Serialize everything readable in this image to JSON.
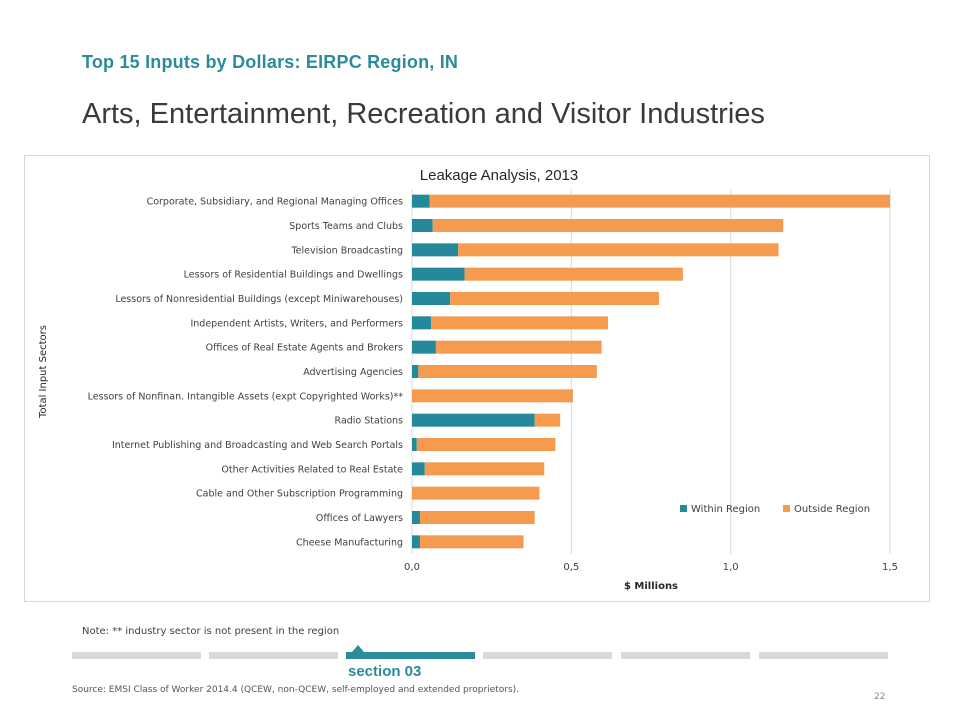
{
  "header": {
    "kicker": "Top 15 Inputs by Dollars: EIRPC Region, IN",
    "title": "Arts, Entertainment, Recreation and Visitor Industries"
  },
  "chart_data": {
    "type": "bar",
    "orientation": "horizontal",
    "stacked": true,
    "title": "Leakage Analysis, 2013",
    "xlabel": "$ Millions",
    "ylabel": "Total Input Sectors",
    "xlim": [
      0,
      1.5
    ],
    "xticks": [
      "0,0",
      "0,5",
      "1,0",
      "1,5"
    ],
    "xtick_values": [
      0,
      0.5,
      1.0,
      1.5
    ],
    "grid": "vertical",
    "legend_position": "bottom-right",
    "categories": [
      "Corporate, Subsidiary, and Regional Managing Offices",
      "Sports Teams and Clubs",
      "Television Broadcasting",
      "Lessors of Residential Buildings and Dwellings",
      "Lessors of Nonresidential Buildings (except Miniwarehouses)",
      "Independent Artists, Writers, and Performers",
      "Offices of Real Estate Agents and Brokers",
      "Advertising Agencies",
      "Lessors of Nonfinan. Intangible Assets (expt Copyrighted Works)**",
      "Radio Stations",
      "Internet Publishing and Broadcasting and Web Search Portals",
      "Other Activities Related to Real Estate",
      "Cable and Other Subscription Programming",
      "Offices of Lawyers",
      "Cheese Manufacturing"
    ],
    "series": [
      {
        "name": "Within Region",
        "color": "#23899b",
        "values": [
          0.055,
          0.065,
          0.145,
          0.165,
          0.12,
          0.06,
          0.075,
          0.02,
          0.0,
          0.385,
          0.015,
          0.04,
          0.0,
          0.025,
          0.025
        ]
      },
      {
        "name": "Outside Region",
        "color": "#f59a4f",
        "values": [
          1.445,
          1.1,
          1.005,
          0.685,
          0.655,
          0.555,
          0.52,
          0.56,
          0.505,
          0.08,
          0.435,
          0.375,
          0.4,
          0.36,
          0.325
        ]
      }
    ]
  },
  "footer": {
    "note": "Note: ** industry sector is not present in the region",
    "section_label": "section 03",
    "source": "Source: EMSI Class of Worker 2014.4 (QCEW, non-QCEW, self-employed and extended proprietors).",
    "page_number": "22"
  }
}
